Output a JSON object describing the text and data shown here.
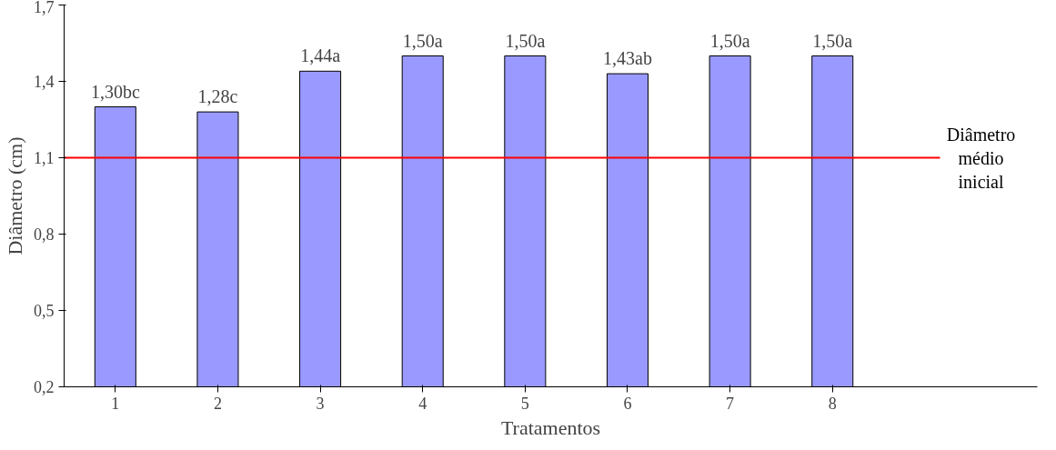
{
  "chart_data": {
    "type": "bar",
    "xlabel": "Tratamentos",
    "ylabel": "Diâmetro (cm)",
    "categories": [
      "1",
      "2",
      "3",
      "4",
      "5",
      "6",
      "7",
      "8"
    ],
    "values": [
      1.3,
      1.28,
      1.44,
      1.5,
      1.5,
      1.43,
      1.5,
      1.5
    ],
    "value_labels": [
      "1,30bc",
      "1,28c",
      "1,44a",
      "1,50a",
      "1,50a",
      "1,43ab",
      "1,50a",
      "1,50a"
    ],
    "color": "#9999ff",
    "ylim": [
      0.2,
      1.7
    ],
    "yticks": [
      {
        "value": 0.2,
        "label": "0,2"
      },
      {
        "value": 0.5,
        "label": "0,5"
      },
      {
        "value": 0.8,
        "label": "0,8"
      },
      {
        "value": 1.1,
        "label": "1,1"
      },
      {
        "value": 1.4,
        "label": "1,4"
      },
      {
        "value": 1.7,
        "label": "1,7"
      }
    ],
    "ref_lines": [
      {
        "axis": "y",
        "value": 1.1,
        "label": "Diâmetro médio inicial",
        "color": "#ff0000"
      }
    ],
    "grid": false
  }
}
